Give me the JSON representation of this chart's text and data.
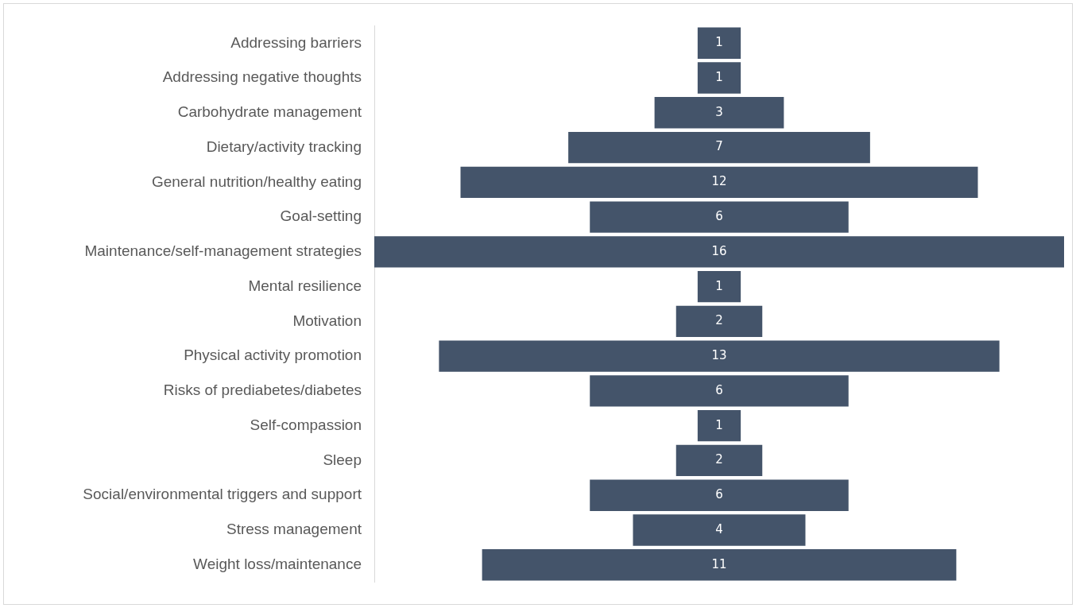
{
  "chart_data": {
    "type": "other",
    "categories": [
      "Addressing barriers",
      "Addressing negative thoughts",
      "Carbohydrate management",
      "Dietary/activity tracking",
      "General nutrition/healthy eating",
      "Goal-setting",
      "Maintenance/self-management strategies",
      "Mental resilience",
      "Motivation",
      "Physical activity promotion",
      "Risks of prediabetes/diabetes",
      "Self-compassion",
      "Sleep",
      "Social/environmental triggers and support",
      "Stress management",
      "Weight loss/maintenance"
    ],
    "values": [
      1,
      1,
      3,
      7,
      12,
      6,
      16,
      1,
      2,
      13,
      6,
      1,
      2,
      6,
      4,
      11
    ],
    "color": "#44546a",
    "data_labels": true
  }
}
